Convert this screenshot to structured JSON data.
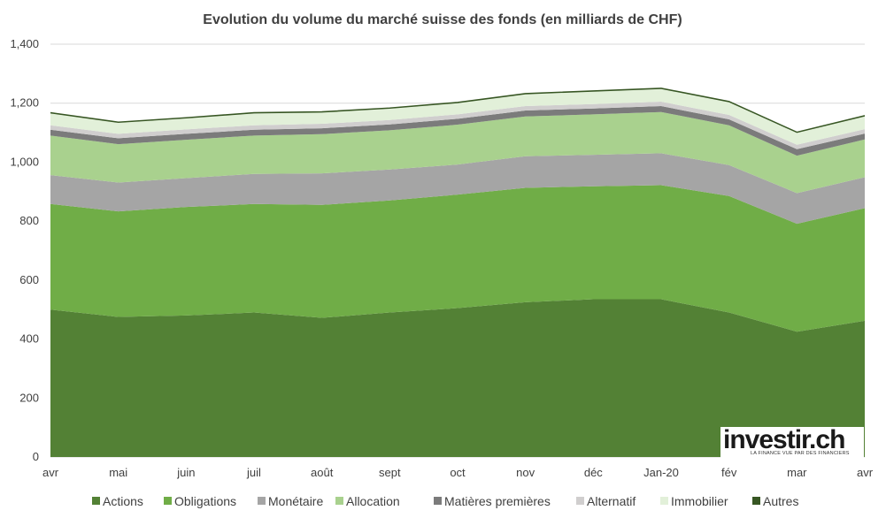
{
  "chart_data": {
    "type": "area",
    "stacked": true,
    "title": "Evolution du volume du marché suisse des fonds (en milliards de CHF)",
    "xlabel": "",
    "ylabel": "",
    "categories": [
      "avr",
      "mai",
      "juin",
      "juil",
      "août",
      "sept",
      "oct",
      "nov",
      "déc",
      "Jan-20",
      "fév",
      "mar",
      "avr"
    ],
    "ylim": [
      0,
      1400
    ],
    "yticks": [
      0,
      200,
      400,
      600,
      800,
      1000,
      1200,
      1400
    ],
    "ytick_labels": [
      "0",
      "200",
      "400",
      "600",
      "800",
      "1,000",
      "1,200",
      "1,400"
    ],
    "grid": true,
    "legend_position": "bottom",
    "series": [
      {
        "name": "Actions",
        "color": "#538135",
        "values": [
          500,
          475,
          480,
          490,
          472,
          490,
          505,
          525,
          535,
          535,
          490,
          425,
          462
        ]
      },
      {
        "name": "Obligations",
        "color": "#70ad47",
        "values": [
          358,
          358,
          368,
          368,
          383,
          380,
          385,
          388,
          383,
          387,
          395,
          366,
          382
        ]
      },
      {
        "name": "Monétaire",
        "color": "#a5a5a5",
        "values": [
          98,
          98,
          98,
          102,
          107,
          105,
          102,
          107,
          107,
          108,
          105,
          104,
          105
        ]
      },
      {
        "name": "Allocation",
        "color": "#a9d18e",
        "values": [
          134,
          130,
          130,
          130,
          133,
          133,
          135,
          135,
          137,
          140,
          135,
          127,
          128
        ]
      },
      {
        "name": "Matières premières",
        "color": "#7b7b7b",
        "values": [
          20,
          20,
          20,
          20,
          20,
          20,
          20,
          20,
          20,
          20,
          20,
          22,
          20
        ]
      },
      {
        "name": "Alternatif",
        "color": "#d0cece",
        "values": [
          15,
          15,
          15,
          15,
          15,
          15,
          15,
          15,
          15,
          15,
          15,
          15,
          15
        ]
      },
      {
        "name": "Immobilier",
        "color": "#e2f0d9",
        "values": [
          40,
          37,
          37,
          40,
          38,
          38,
          38,
          40,
          42,
          43,
          43,
          40,
          43
        ]
      },
      {
        "name": "Autres",
        "color": "#375623",
        "values": [
          3,
          3,
          3,
          3,
          3,
          3,
          3,
          3,
          3,
          3,
          3,
          3,
          3
        ]
      }
    ]
  },
  "logo": {
    "text": "investir.ch",
    "tagline": "LA FINANCE VUE PAR DES FINANCIERS"
  }
}
